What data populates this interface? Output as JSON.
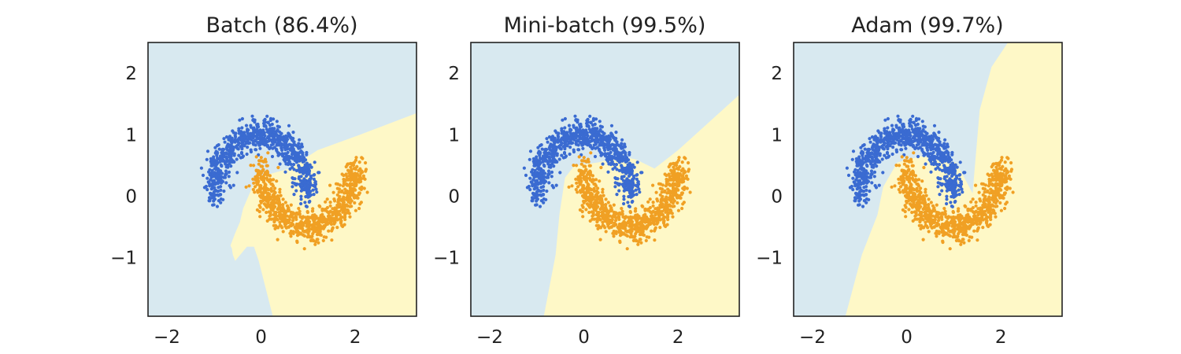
{
  "chart_data": [
    {
      "type": "scatter",
      "title": "Batch (86.4%)",
      "xlabel": "",
      "ylabel": "",
      "xlim": [
        -2.4,
        3.3
      ],
      "ylim": [
        -1.95,
        2.5
      ],
      "xticks": [
        -2,
        0,
        2
      ],
      "yticks": [
        -1,
        0,
        1,
        2
      ],
      "xtick_labels": [
        "−2",
        "0",
        "2"
      ],
      "ytick_labels": [
        "−1",
        "0",
        "1",
        "2"
      ],
      "grid": false,
      "legend": "none",
      "decision_region_yellow": [
        [
          0.25,
          -1.95
        ],
        [
          -0.05,
          -1.05
        ],
        [
          -0.15,
          -0.82
        ],
        [
          -0.3,
          -0.82
        ],
        [
          -0.55,
          -1.05
        ],
        [
          -0.6,
          -0.95
        ],
        [
          -0.62,
          -0.85
        ],
        [
          -0.65,
          -0.8
        ],
        [
          -0.55,
          -0.6
        ],
        [
          -0.45,
          -0.42
        ],
        [
          -0.38,
          -0.2
        ],
        [
          -0.1,
          0.3
        ],
        [
          0.6,
          0.45
        ],
        [
          1.2,
          0.75
        ],
        [
          2.1,
          1.0
        ],
        [
          3.3,
          1.35
        ],
        [
          3.3,
          -1.95
        ]
      ]
    },
    {
      "type": "scatter",
      "title": "Mini-batch (99.5%)",
      "xlabel": "",
      "ylabel": "",
      "xlim": [
        -2.4,
        3.3
      ],
      "ylim": [
        -1.95,
        2.5
      ],
      "xticks": [
        -2,
        0,
        2
      ],
      "yticks": [
        -1,
        0,
        1,
        2
      ],
      "xtick_labels": [
        "−2",
        "0",
        "2"
      ],
      "ytick_labels": [
        "−1",
        "0",
        "1",
        "2"
      ],
      "grid": false,
      "legend": "none",
      "decision_region_yellow": [
        [
          -0.85,
          -1.95
        ],
        [
          -0.6,
          -0.95
        ],
        [
          -0.52,
          -0.3
        ],
        [
          -0.4,
          0.3
        ],
        [
          -0.2,
          0.5
        ],
        [
          0.3,
          0.55
        ],
        [
          0.8,
          0.65
        ],
        [
          1.1,
          0.6
        ],
        [
          1.5,
          0.45
        ],
        [
          2.0,
          0.75
        ],
        [
          3.3,
          1.65
        ],
        [
          3.3,
          -1.95
        ]
      ]
    },
    {
      "type": "scatter",
      "title": "Adam (99.7%)",
      "xlabel": "",
      "ylabel": "",
      "xlim": [
        -2.4,
        3.3
      ],
      "ylim": [
        -1.95,
        2.5
      ],
      "xticks": [
        -2,
        0,
        2
      ],
      "yticks": [
        -1,
        0,
        1,
        2
      ],
      "xtick_labels": [
        "−2",
        "0",
        "2"
      ],
      "ytick_labels": [
        "−1",
        "0",
        "1",
        "2"
      ],
      "grid": false,
      "legend": "none",
      "decision_region_yellow": [
        [
          -1.3,
          -1.95
        ],
        [
          -0.95,
          -0.95
        ],
        [
          -0.62,
          -0.3
        ],
        [
          -0.5,
          0.15
        ],
        [
          -0.2,
          0.55
        ],
        [
          0.3,
          0.65
        ],
        [
          0.7,
          0.6
        ],
        [
          1.05,
          0.55
        ],
        [
          1.4,
          0.05
        ],
        [
          1.45,
          0.5
        ],
        [
          1.55,
          1.4
        ],
        [
          1.8,
          2.1
        ],
        [
          2.15,
          2.5
        ],
        [
          3.3,
          2.5
        ],
        [
          3.3,
          -1.95
        ]
      ]
    }
  ],
  "dataset": {
    "name": "two moons",
    "class_0_color": "#3a6bd1",
    "class_1_color": "#f0a024",
    "region_0_color": "#d8e9f0",
    "region_1_color": "#fef8c7",
    "noise": 0.12,
    "points_per_class": 850
  }
}
